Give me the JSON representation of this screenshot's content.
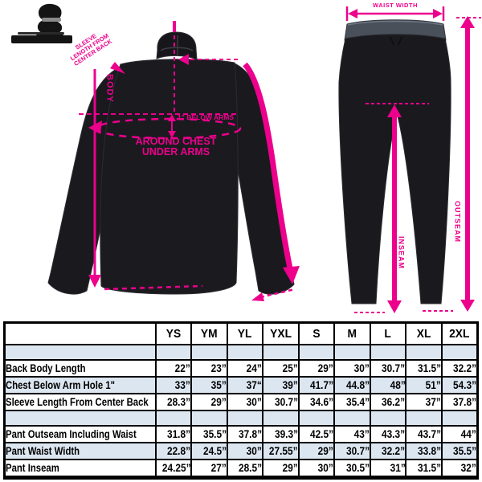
{
  "colors": {
    "pink": "#EC008C",
    "garment": "#1A1A1E",
    "table_row_blue": "#DCE6F1",
    "table_border": "#000000"
  },
  "logo": {
    "name": "brand-logo"
  },
  "diagram": {
    "jacket": {
      "body_label": "BODY",
      "below_arms_label": "1” BELOW ARMS",
      "around_chest_line1": "AROUND CHEST",
      "around_chest_line2": "UNDER ARMS",
      "sleeve_label_line1": "SLEEVE",
      "sleeve_label_line2": "LENGTH FROM",
      "sleeve_label_line3": "CENTER BACK"
    },
    "pants": {
      "waist_label": "WAIST WIDTH",
      "outseam_label": "OUTSEAM",
      "inseam_label": "INSEAM"
    }
  },
  "table": {
    "columns": [
      "YS",
      "YM",
      "YL",
      "YXL",
      "S",
      "M",
      "L",
      "XL",
      "2XL"
    ],
    "rows": [
      {
        "type": "spacer"
      },
      {
        "type": "data",
        "label": "Back Body Length",
        "values": [
          "22”",
          "23”",
          "24”",
          "25”",
          "29”",
          "30”",
          "30.7”",
          "31.5”",
          "32.2”"
        ]
      },
      {
        "type": "data",
        "label": "Chest Below Arm Hole 1\"",
        "values": [
          "33”",
          "35”",
          "37“",
          "39”",
          "41.7”",
          "44.8”",
          "48”",
          "51”",
          "54.3”"
        ]
      },
      {
        "type": "data",
        "label": "Sleeve Length From Center Back",
        "values": [
          "28.3”",
          "29”",
          "30”",
          "30.7”",
          "34.6”",
          "35.4”",
          "36.2”",
          "37”",
          "37.8”"
        ]
      },
      {
        "type": "spacer"
      },
      {
        "type": "data",
        "label": "Pant Outseam Including Waist",
        "values": [
          "31.8”",
          "35.5”",
          "37.8”",
          "39.3”",
          "42.5”",
          "43”",
          "43.3”",
          "43.7”",
          "44”"
        ]
      },
      {
        "type": "data",
        "label": "Pant Waist Width",
        "values": [
          "22.8”",
          "24.5”",
          "30”",
          "27.55”",
          "29”",
          "30.7”",
          "32.2”",
          "33.8”",
          "35.5”"
        ]
      },
      {
        "type": "data",
        "label": "Pant Inseam",
        "values": [
          "24.25”",
          "27”",
          "28.5”",
          "29”",
          "30”",
          "30.5”",
          "31”",
          "31.5”",
          "32”"
        ]
      }
    ]
  }
}
